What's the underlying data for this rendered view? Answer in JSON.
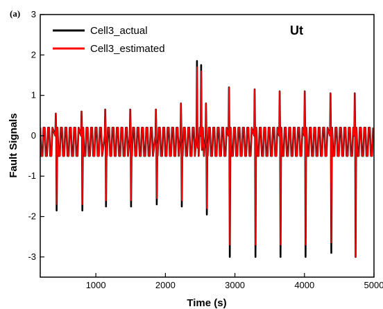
{
  "chart_data": {
    "type": "line",
    "panel_label": "(a)",
    "annotation": "Ut",
    "xlabel": "Time (s)",
    "ylabel": "Fault Signals",
    "xlim": [
      200,
      5000
    ],
    "ylim": [
      -3.5,
      3
    ],
    "xticks": [
      1000,
      2000,
      3000,
      4000,
      5000
    ],
    "xtick_labels": [
      "1000",
      "2000",
      "3000",
      "4000",
      "5000"
    ],
    "yticks": [
      -3,
      -2,
      -1,
      0,
      1,
      2,
      3
    ],
    "ytick_labels": [
      "-3",
      "-2",
      "-1",
      "0",
      "1",
      "2",
      "3"
    ],
    "grid": false,
    "legend_position": "top-left",
    "background_oscillation": {
      "period_s": 32,
      "upper": 0.2,
      "lower": -0.5
    },
    "series": [
      {
        "name": "Cell3_actual",
        "color": "#000000",
        "events": [
          {
            "x": 430,
            "peak": 0.55,
            "trough": -1.85
          },
          {
            "x": 800,
            "peak": 0.6,
            "trough": -1.85
          },
          {
            "x": 1140,
            "peak": 0.65,
            "trough": -1.75
          },
          {
            "x": 1500,
            "peak": 0.65,
            "trough": -1.75
          },
          {
            "x": 1870,
            "peak": 0.65,
            "trough": -1.7
          },
          {
            "x": 2230,
            "peak": 0.8,
            "trough": -1.75
          },
          {
            "x": 2460,
            "peak": 1.85,
            "trough": -0.3
          },
          {
            "x": 2520,
            "peak": 1.75,
            "trough": -0.35
          },
          {
            "x": 2590,
            "peak": 0.8,
            "trough": -1.95
          },
          {
            "x": 2920,
            "peak": 1.2,
            "trough": -3.0
          },
          {
            "x": 3290,
            "peak": 1.15,
            "trough": -3.0
          },
          {
            "x": 3650,
            "peak": 1.1,
            "trough": -3.0
          },
          {
            "x": 4010,
            "peak": 1.1,
            "trough": -3.0
          },
          {
            "x": 4380,
            "peak": 1.05,
            "trough": -2.9
          },
          {
            "x": 4730,
            "peak": 1.05,
            "trough": -3.0
          }
        ]
      },
      {
        "name": "Cell3_estimated",
        "color": "#ff0000",
        "events": [
          {
            "x": 430,
            "peak": 0.55,
            "trough": -1.7
          },
          {
            "x": 800,
            "peak": 0.6,
            "trough": -1.7
          },
          {
            "x": 1140,
            "peak": 0.65,
            "trough": -1.6
          },
          {
            "x": 1500,
            "peak": 0.65,
            "trough": -1.6
          },
          {
            "x": 1870,
            "peak": 0.65,
            "trough": -1.55
          },
          {
            "x": 2230,
            "peak": 0.8,
            "trough": -1.6
          },
          {
            "x": 2460,
            "peak": 1.7,
            "trough": -0.3
          },
          {
            "x": 2520,
            "peak": 1.6,
            "trough": -0.35
          },
          {
            "x": 2590,
            "peak": 0.8,
            "trough": -1.8
          },
          {
            "x": 2920,
            "peak": 1.2,
            "trough": -2.7
          },
          {
            "x": 3290,
            "peak": 1.15,
            "trough": -2.7
          },
          {
            "x": 3650,
            "peak": 1.1,
            "trough": -2.7
          },
          {
            "x": 4010,
            "peak": 1.1,
            "trough": -2.7
          },
          {
            "x": 4380,
            "peak": 1.05,
            "trough": -2.65
          },
          {
            "x": 4730,
            "peak": 1.05,
            "trough": -3.0
          }
        ]
      }
    ]
  }
}
